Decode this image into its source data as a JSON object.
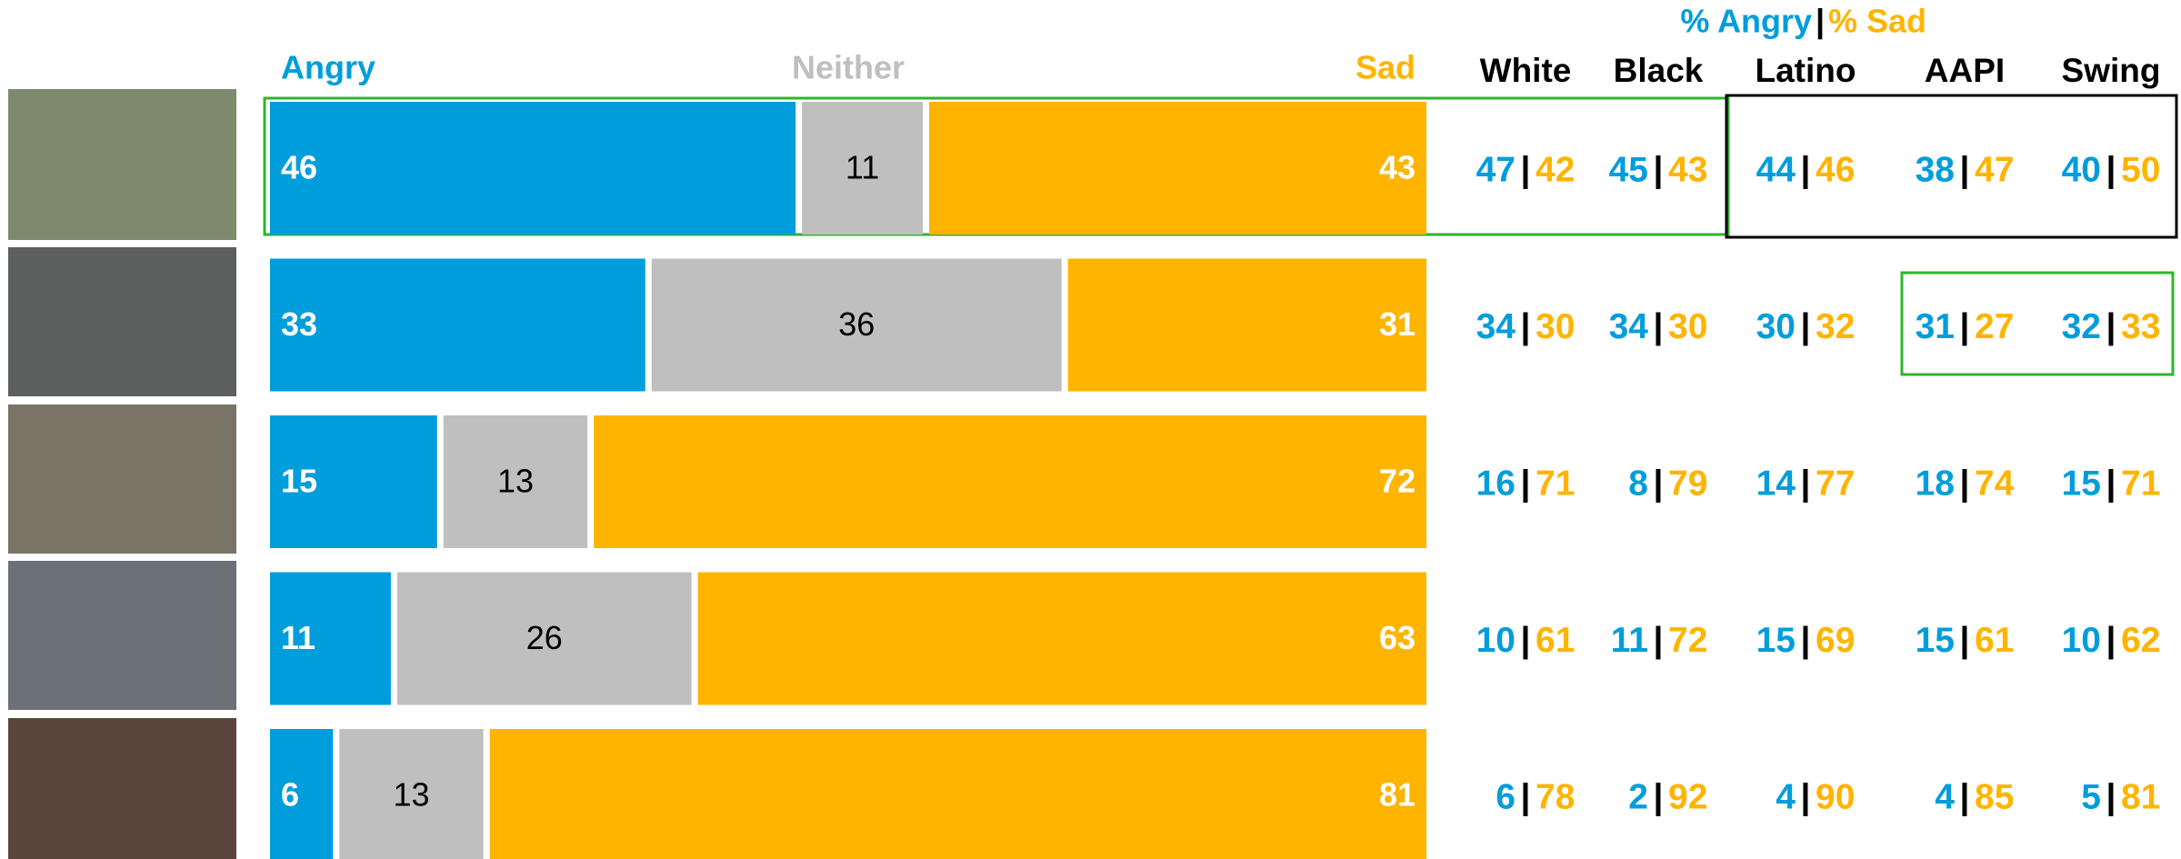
{
  "chart_data": {
    "type": "bar",
    "orientation": "horizontal",
    "stacked": true,
    "categories": [
      null,
      null,
      null,
      null,
      null
    ],
    "xlim": [
      0,
      100
    ],
    "series": [
      {
        "name": "Angry",
        "color": "#009ddc",
        "values": [
          46,
          33,
          15,
          11,
          6
        ]
      },
      {
        "name": "Neither",
        "color": "#bfbfbf",
        "values": [
          11,
          36,
          13,
          26,
          13
        ]
      },
      {
        "name": "Sad",
        "color": "#ffb400",
        "values": [
          43,
          31,
          72,
          63,
          81
        ]
      }
    ],
    "table": {
      "header": {
        "angry": "% Angry",
        "separator": "|",
        "sad": "% Sad"
      },
      "groups": [
        {
          "name": "White",
          "angry": [
            47,
            34,
            16,
            10,
            6
          ],
          "sad": [
            42,
            30,
            71,
            61,
            78
          ]
        },
        {
          "name": "Black",
          "angry": [
            45,
            34,
            8,
            11,
            2
          ],
          "sad": [
            43,
            30,
            79,
            72,
            92
          ]
        },
        {
          "name": "Latino",
          "angry": [
            44,
            30,
            14,
            15,
            4
          ],
          "sad": [
            46,
            32,
            77,
            69,
            90
          ]
        },
        {
          "name": "AAPI",
          "angry": [
            38,
            31,
            18,
            15,
            4
          ],
          "sad": [
            47,
            27,
            74,
            61,
            85
          ]
        },
        {
          "name": "Swing",
          "angry": [
            40,
            32,
            15,
            10,
            5
          ],
          "sad": [
            50,
            33,
            71,
            62,
            81
          ]
        }
      ]
    }
  }
}
